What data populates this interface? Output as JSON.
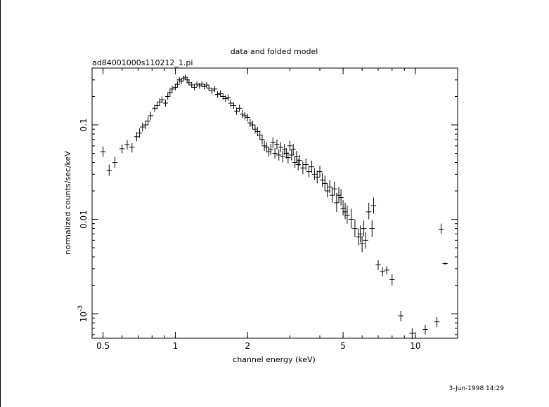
{
  "chart_data": {
    "type": "scatter",
    "title": "data and folded model",
    "subtitle": "ad84001000s110212_1.pi",
    "xlabel": "channel energy (keV)",
    "ylabel": "normalized counts/sec/keV",
    "timestamp": "3-Jun-1998 14:29",
    "x_scale": "log",
    "y_scale": "log",
    "xlim": [
      0.45,
      15
    ],
    "ylim": [
      0.00055,
      0.4
    ],
    "x_ticks": [
      {
        "value": 0.5,
        "label": "0.5"
      },
      {
        "value": 1,
        "label": "1"
      },
      {
        "value": 2,
        "label": "2"
      },
      {
        "value": 5,
        "label": "5"
      },
      {
        "value": 10,
        "label": "10"
      }
    ],
    "y_ticks": [
      {
        "value": 0.001,
        "label": "10",
        "sup": "-3"
      },
      {
        "value": 0.01,
        "label": "0.01",
        "sup": ""
      },
      {
        "value": 0.1,
        "label": "0.1",
        "sup": ""
      }
    ],
    "grid": false,
    "series": [
      {
        "points": [
          [
            0.5,
            0.052,
            0.006,
            0.007
          ],
          [
            0.53,
            0.033,
            0.004,
            0.005
          ],
          [
            0.56,
            0.04,
            0.005,
            0.006
          ],
          [
            0.6,
            0.056,
            0.006,
            0.006
          ],
          [
            0.63,
            0.062,
            0.007,
            0.007
          ],
          [
            0.66,
            0.058,
            0.007,
            0.006
          ],
          [
            0.69,
            0.075,
            0.008,
            0.009
          ],
          [
            0.71,
            0.082,
            0.009,
            0.01
          ],
          [
            0.73,
            0.095,
            0.01,
            0.011
          ],
          [
            0.75,
            0.1,
            0.01,
            0.011
          ],
          [
            0.77,
            0.11,
            0.011,
            0.012
          ],
          [
            0.79,
            0.125,
            0.012,
            0.013
          ],
          [
            0.82,
            0.15,
            0.013,
            0.014
          ],
          [
            0.84,
            0.16,
            0.014,
            0.015
          ],
          [
            0.86,
            0.175,
            0.015,
            0.016
          ],
          [
            0.88,
            0.185,
            0.015,
            0.016
          ],
          [
            0.91,
            0.17,
            0.014,
            0.015
          ],
          [
            0.93,
            0.2,
            0.016,
            0.017
          ],
          [
            0.95,
            0.22,
            0.017,
            0.018
          ],
          [
            0.97,
            0.24,
            0.018,
            0.019
          ],
          [
            1.0,
            0.25,
            0.018,
            0.019
          ],
          [
            1.02,
            0.27,
            0.019,
            0.02
          ],
          [
            1.04,
            0.3,
            0.02,
            0.021
          ],
          [
            1.06,
            0.29,
            0.02,
            0.021
          ],
          [
            1.08,
            0.31,
            0.021,
            0.022
          ],
          [
            1.1,
            0.32,
            0.021,
            0.022
          ],
          [
            1.12,
            0.3,
            0.02,
            0.021
          ],
          [
            1.14,
            0.28,
            0.019,
            0.02
          ],
          [
            1.17,
            0.265,
            0.018,
            0.019
          ],
          [
            1.2,
            0.25,
            0.018,
            0.019
          ],
          [
            1.23,
            0.27,
            0.019,
            0.02
          ],
          [
            1.26,
            0.26,
            0.018,
            0.019
          ],
          [
            1.29,
            0.27,
            0.019,
            0.02
          ],
          [
            1.32,
            0.255,
            0.018,
            0.019
          ],
          [
            1.35,
            0.265,
            0.018,
            0.019
          ],
          [
            1.38,
            0.245,
            0.017,
            0.018
          ],
          [
            1.42,
            0.23,
            0.017,
            0.018
          ],
          [
            1.46,
            0.24,
            0.017,
            0.018
          ],
          [
            1.5,
            0.21,
            0.016,
            0.017
          ],
          [
            1.54,
            0.215,
            0.016,
            0.017
          ],
          [
            1.58,
            0.2,
            0.015,
            0.016
          ],
          [
            1.62,
            0.19,
            0.015,
            0.016
          ],
          [
            1.66,
            0.195,
            0.015,
            0.016
          ],
          [
            1.7,
            0.17,
            0.014,
            0.015
          ],
          [
            1.75,
            0.16,
            0.013,
            0.014
          ],
          [
            1.8,
            0.14,
            0.012,
            0.013
          ],
          [
            1.85,
            0.15,
            0.013,
            0.014
          ],
          [
            1.9,
            0.13,
            0.012,
            0.013
          ],
          [
            1.95,
            0.125,
            0.011,
            0.012
          ],
          [
            2.0,
            0.12,
            0.011,
            0.012
          ],
          [
            2.05,
            0.105,
            0.01,
            0.011
          ],
          [
            2.1,
            0.1,
            0.01,
            0.011
          ],
          [
            2.15,
            0.09,
            0.009,
            0.01
          ],
          [
            2.2,
            0.085,
            0.009,
            0.01
          ],
          [
            2.25,
            0.078,
            0.008,
            0.009
          ],
          [
            2.3,
            0.07,
            0.008,
            0.009
          ],
          [
            2.35,
            0.06,
            0.007,
            0.008
          ],
          [
            2.4,
            0.058,
            0.007,
            0.008
          ],
          [
            2.45,
            0.052,
            0.006,
            0.007
          ],
          [
            2.5,
            0.055,
            0.007,
            0.008
          ],
          [
            2.55,
            0.065,
            0.008,
            0.009
          ],
          [
            2.6,
            0.05,
            0.006,
            0.007
          ],
          [
            2.65,
            0.062,
            0.007,
            0.008
          ],
          [
            2.7,
            0.048,
            0.006,
            0.007
          ],
          [
            2.75,
            0.058,
            0.007,
            0.008
          ],
          [
            2.8,
            0.046,
            0.006,
            0.007
          ],
          [
            2.85,
            0.055,
            0.007,
            0.008
          ],
          [
            2.9,
            0.05,
            0.006,
            0.007
          ],
          [
            2.95,
            0.045,
            0.006,
            0.007
          ],
          [
            3.0,
            0.06,
            0.007,
            0.008
          ],
          [
            3.05,
            0.048,
            0.006,
            0.007
          ],
          [
            3.1,
            0.055,
            0.007,
            0.008
          ],
          [
            3.15,
            0.04,
            0.005,
            0.006
          ],
          [
            3.2,
            0.046,
            0.006,
            0.007
          ],
          [
            3.25,
            0.038,
            0.005,
            0.006
          ],
          [
            3.3,
            0.042,
            0.005,
            0.006
          ],
          [
            3.4,
            0.035,
            0.005,
            0.006
          ],
          [
            3.5,
            0.038,
            0.005,
            0.006
          ],
          [
            3.6,
            0.032,
            0.004,
            0.005
          ],
          [
            3.7,
            0.036,
            0.005,
            0.006
          ],
          [
            3.8,
            0.03,
            0.004,
            0.005
          ],
          [
            3.9,
            0.028,
            0.004,
            0.005
          ],
          [
            4.0,
            0.032,
            0.004,
            0.005
          ],
          [
            4.1,
            0.026,
            0.004,
            0.005
          ],
          [
            4.2,
            0.024,
            0.004,
            0.005
          ],
          [
            4.3,
            0.02,
            0.003,
            0.004
          ],
          [
            4.4,
            0.022,
            0.003,
            0.004
          ],
          [
            4.5,
            0.018,
            0.003,
            0.004
          ],
          [
            4.6,
            0.021,
            0.003,
            0.004
          ],
          [
            4.7,
            0.015,
            0.003,
            0.004
          ],
          [
            4.8,
            0.018,
            0.003,
            0.004
          ],
          [
            4.9,
            0.017,
            0.003,
            0.004
          ],
          [
            5.0,
            0.013,
            0.002,
            0.003
          ],
          [
            5.1,
            0.012,
            0.002,
            0.003
          ],
          [
            5.2,
            0.011,
            0.002,
            0.003
          ],
          [
            5.4,
            0.01,
            0.002,
            0.003
          ],
          [
            5.6,
            0.008,
            0.0015,
            0.002
          ],
          [
            5.8,
            0.0065,
            0.0012,
            0.0015
          ],
          [
            5.9,
            0.007,
            0.0013,
            0.0016
          ],
          [
            6.0,
            0.0055,
            0.001,
            0.0012
          ],
          [
            6.1,
            0.008,
            0.0014,
            0.0017
          ],
          [
            6.2,
            0.006,
            0.0011,
            0.0013
          ],
          [
            6.4,
            0.012,
            0.002,
            0.003
          ],
          [
            6.6,
            0.008,
            0.0015,
            0.0018
          ],
          [
            6.7,
            0.014,
            0.0025,
            0.003
          ],
          [
            7.0,
            0.0033,
            0.0004,
            0.0004
          ],
          [
            7.3,
            0.0028,
            0.0003,
            0.0003
          ],
          [
            7.6,
            0.0029,
            0.0003,
            0.0003
          ],
          [
            8.0,
            0.0023,
            0.0003,
            0.0003
          ],
          [
            8.7,
            0.00095,
            0.00012,
            0.00012
          ],
          [
            9.7,
            0.00062,
            8e-05,
            8e-05
          ],
          [
            11.0,
            0.00068,
            8e-05,
            8e-05
          ],
          [
            12.3,
            0.00082,
            0.0001,
            0.0001
          ],
          [
            12.8,
            0.0078,
            0.0008,
            0.0012
          ],
          [
            13.3,
            0.0034,
            0.0001,
            0.0001
          ]
        ]
      }
    ]
  }
}
